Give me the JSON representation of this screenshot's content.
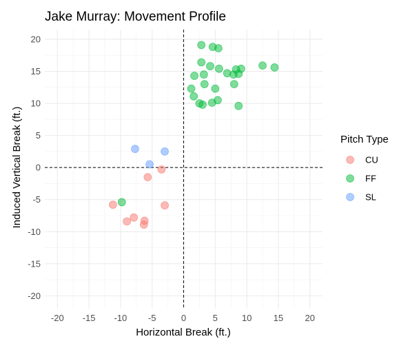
{
  "chart_data": {
    "type": "scatter",
    "title": "Jake Murray: Movement Profile",
    "xlabel": "Horizontal Break (ft.)",
    "ylabel": "Induced Vertical Break (ft.)",
    "xlim": [
      -22,
      22
    ],
    "ylim": [
      -22,
      21.5
    ],
    "xticks": [
      -20,
      -15,
      -10,
      -5,
      0,
      5,
      10,
      15,
      20
    ],
    "yticks": [
      -20,
      -15,
      -10,
      -5,
      0,
      5,
      10,
      15,
      20
    ],
    "grid": true,
    "reference_lines": {
      "x": 0,
      "y": 0,
      "style": "dashed"
    },
    "legend": {
      "title": "Pitch Type",
      "position": "right"
    },
    "series": [
      {
        "name": "CU",
        "color": "#F8766D",
        "points": [
          [
            -11.2,
            -5.8
          ],
          [
            -9.0,
            -8.4
          ],
          [
            -7.9,
            -7.8
          ],
          [
            -6.2,
            -8.3
          ],
          [
            -6.3,
            -8.9
          ],
          [
            -5.7,
            -1.5
          ],
          [
            -3.5,
            -0.3
          ],
          [
            -3.0,
            -5.9
          ]
        ]
      },
      {
        "name": "FF",
        "color": "#00BA38",
        "points": [
          [
            -9.8,
            -5.4
          ],
          [
            2.8,
            19.1
          ],
          [
            4.6,
            18.8
          ],
          [
            5.5,
            18.6
          ],
          [
            2.8,
            16.4
          ],
          [
            4.2,
            15.8
          ],
          [
            5.6,
            15.4
          ],
          [
            3.2,
            14.5
          ],
          [
            1.7,
            14.3
          ],
          [
            6.9,
            14.7
          ],
          [
            8.3,
            15.3
          ],
          [
            9.1,
            15.4
          ],
          [
            7.9,
            14.5
          ],
          [
            8.7,
            14.6
          ],
          [
            12.5,
            15.9
          ],
          [
            14.4,
            15.6
          ],
          [
            1.2,
            12.3
          ],
          [
            3.3,
            13.0
          ],
          [
            5.0,
            12.3
          ],
          [
            8.0,
            13.0
          ],
          [
            1.6,
            11.1
          ],
          [
            2.5,
            10.0
          ],
          [
            3.0,
            9.8
          ],
          [
            4.5,
            10.1
          ],
          [
            5.4,
            10.5
          ],
          [
            8.7,
            9.6
          ]
        ]
      },
      {
        "name": "SL",
        "color": "#619CFF",
        "points": [
          [
            -7.7,
            2.9
          ],
          [
            -3.0,
            2.5
          ],
          [
            -5.4,
            0.5
          ]
        ]
      }
    ]
  }
}
